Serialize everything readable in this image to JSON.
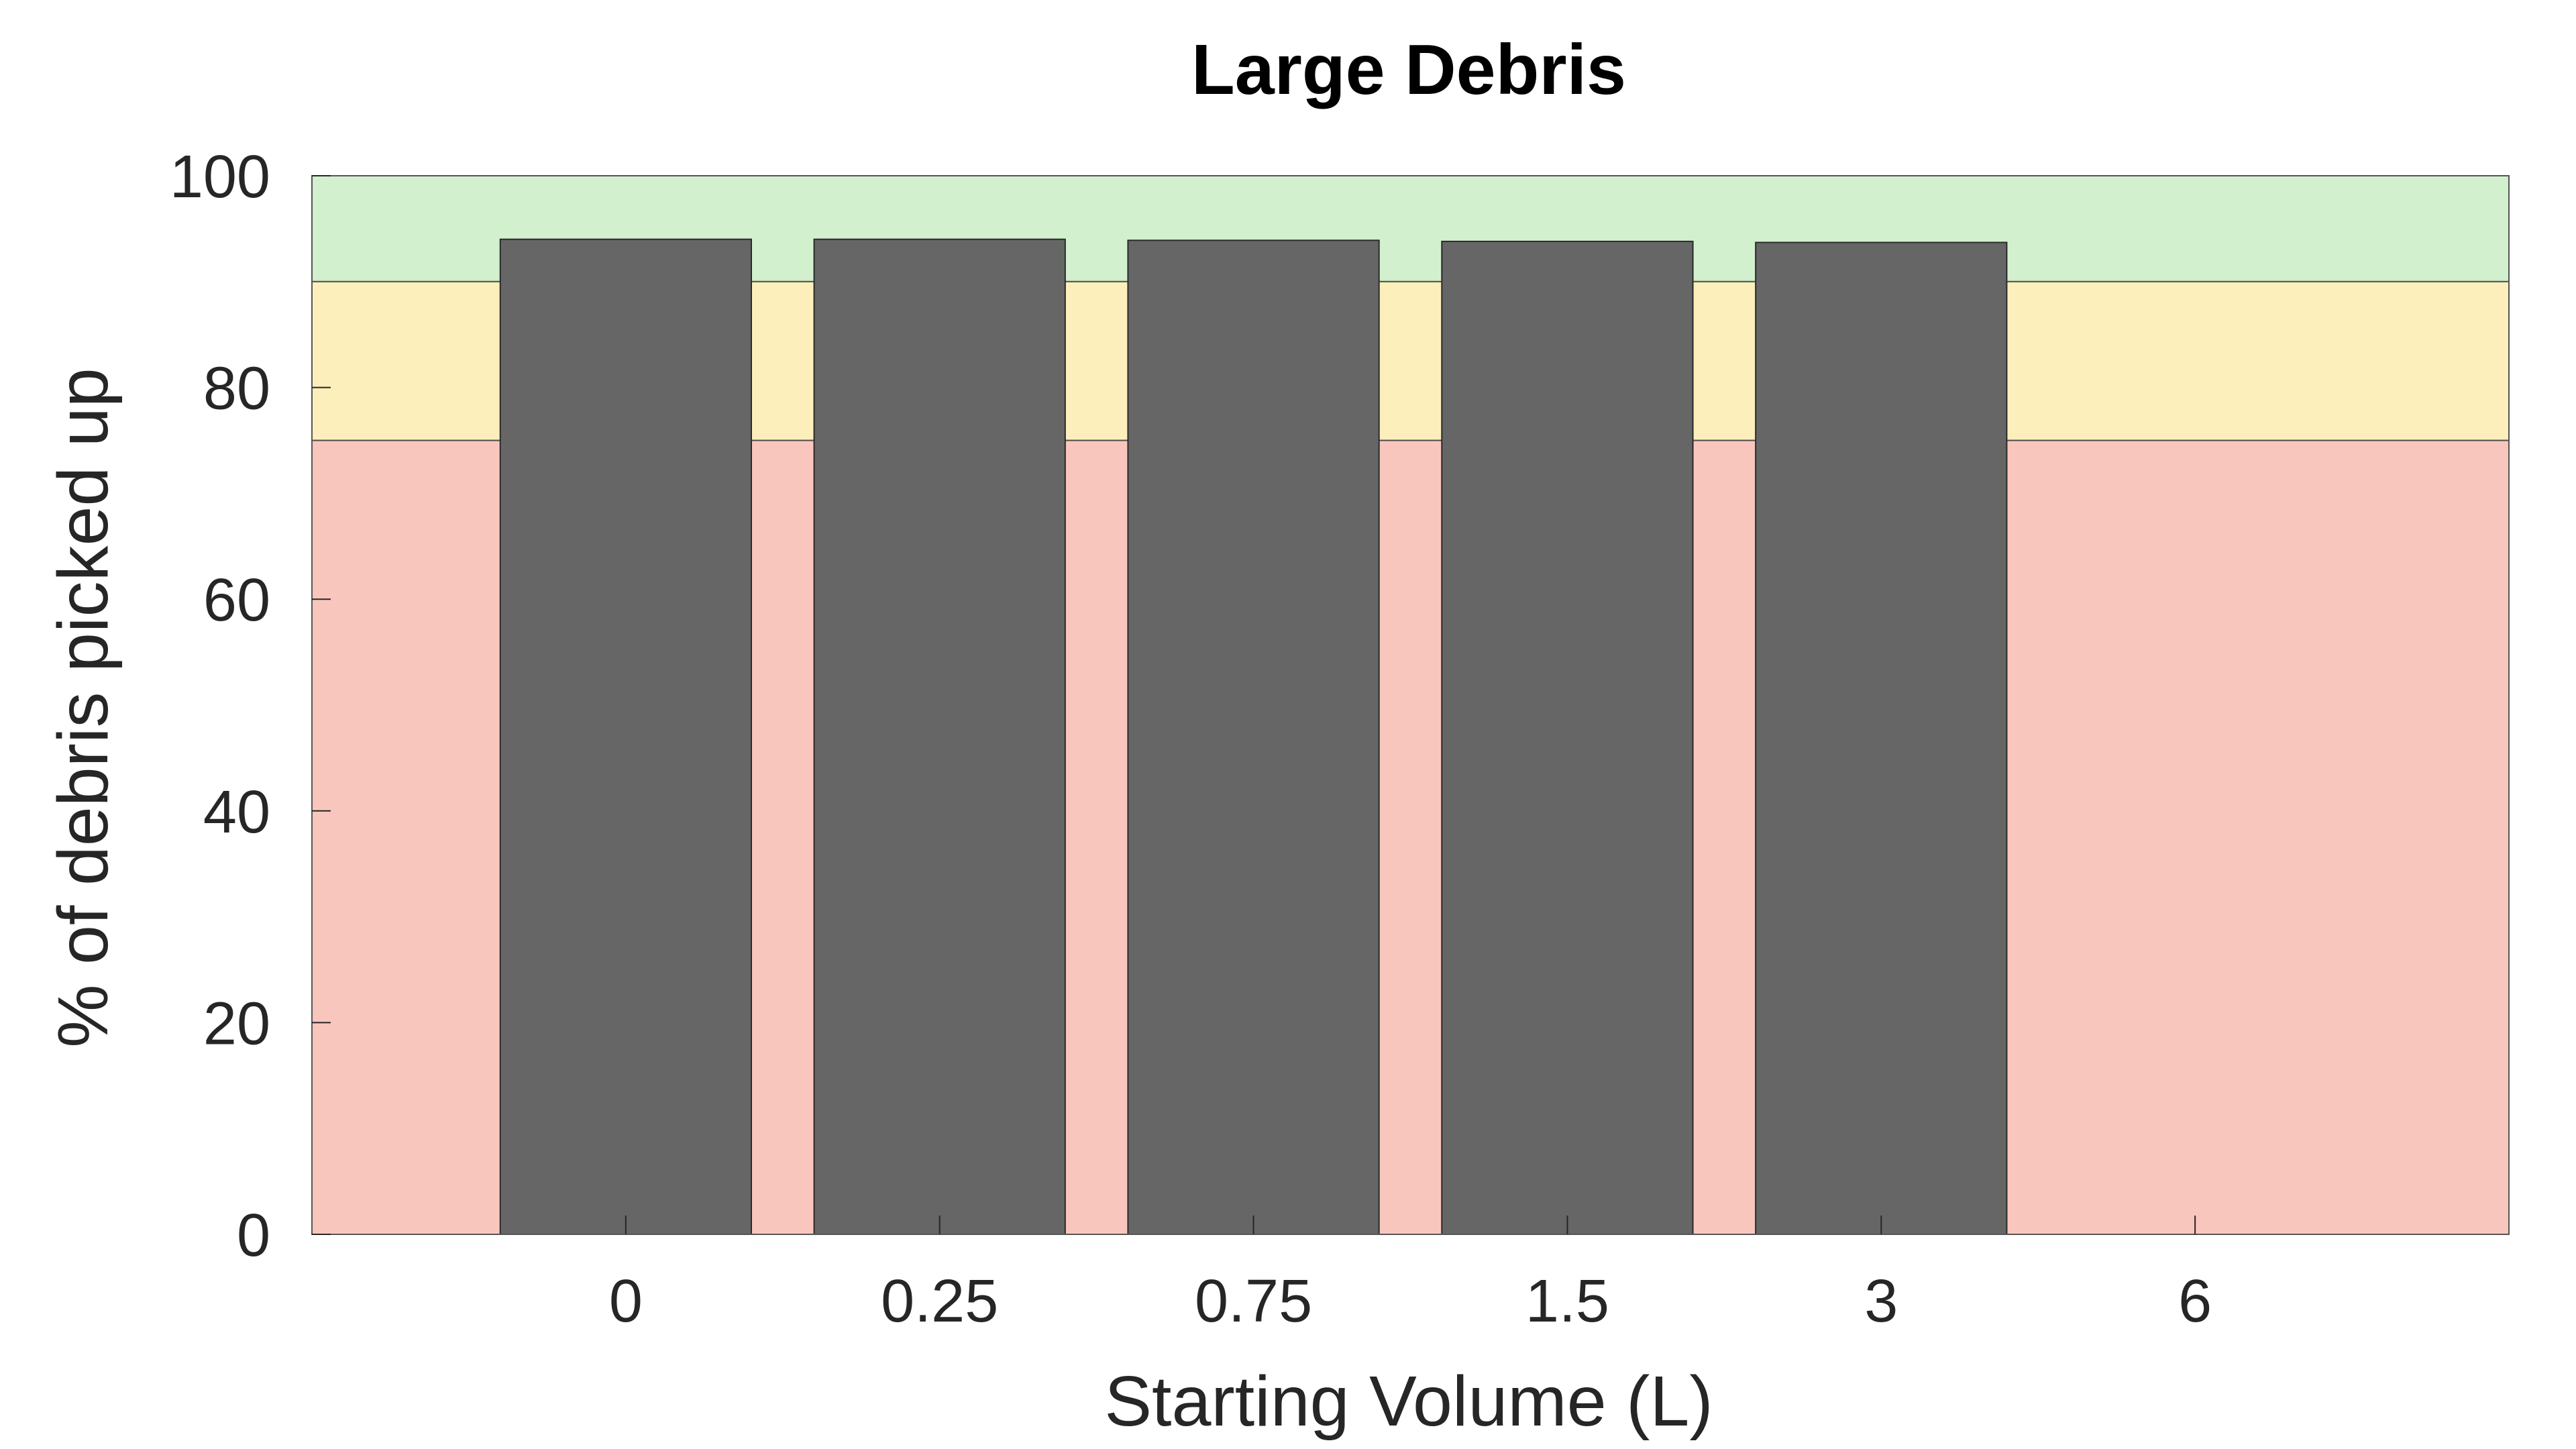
{
  "chart_data": {
    "type": "bar",
    "title": "Large Debris",
    "xlabel": "Starting Volume (L)",
    "ylabel": "% of debris picked up",
    "categories": [
      "0",
      "0.25",
      "0.75",
      "1.5",
      "3",
      "6"
    ],
    "values": [
      94,
      94,
      93.9,
      93.8,
      93.7,
      null
    ],
    "ylim": [
      0,
      100
    ],
    "yticks": [
      "0",
      "20",
      "40",
      "60",
      "80",
      "100"
    ],
    "grid": false,
    "legend": "none",
    "bands": [
      {
        "from": 0,
        "to": 75,
        "color": "#f9c6be"
      },
      {
        "from": 75,
        "to": 90,
        "color": "#fdefbb"
      },
      {
        "from": 90,
        "to": 100,
        "color": "#d2f0ce"
      }
    ],
    "colors": {
      "bar": "#666666",
      "bar_edge": "#2b2b2b",
      "axis": "#262626",
      "background": "#ffffff"
    }
  }
}
